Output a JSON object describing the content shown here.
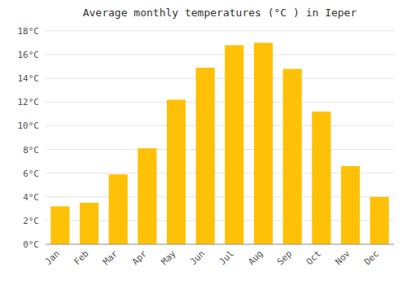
{
  "chart_data": {
    "type": "bar",
    "title": "Average monthly temperatures (°C ) in Ieper",
    "categories": [
      "Jan",
      "Feb",
      "Mar",
      "Apr",
      "May",
      "Jun",
      "Jul",
      "Aug",
      "Sep",
      "Oct",
      "Nov",
      "Dec"
    ],
    "values": [
      3.2,
      3.5,
      5.9,
      8.1,
      12.2,
      14.9,
      16.8,
      17.0,
      14.8,
      11.2,
      6.6,
      4.0
    ],
    "color": "#FFC107",
    "ylim": [
      0,
      18
    ],
    "yticks": [
      {
        "value": 0,
        "label": "0°C"
      },
      {
        "value": 2,
        "label": "2°C"
      },
      {
        "value": 4,
        "label": "4°C"
      },
      {
        "value": 6,
        "label": "6°C"
      },
      {
        "value": 8,
        "label": "8°C"
      },
      {
        "value": 10,
        "label": "10°C"
      },
      {
        "value": 12,
        "label": "12°C"
      },
      {
        "value": 14,
        "label": "14°C"
      },
      {
        "value": 16,
        "label": "16°C"
      },
      {
        "value": 18,
        "label": "18°C"
      }
    ],
    "grid": true
  }
}
